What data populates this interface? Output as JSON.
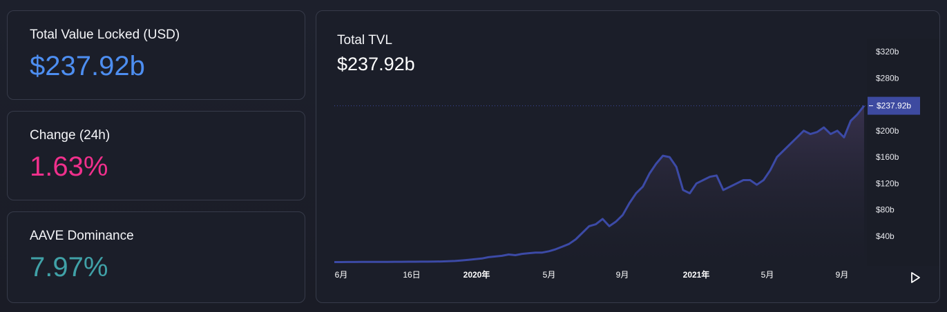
{
  "stats": [
    {
      "label": "Total Value Locked (USD)",
      "value": "$237.92b",
      "color": "#4d8ef1"
    },
    {
      "label": "Change (24h)",
      "value": "1.63%",
      "color": "#f0308c"
    },
    {
      "label": "AAVE Dominance",
      "value": "7.97%",
      "color": "#40a1a7"
    }
  ],
  "chart": {
    "title": "Total TVL",
    "value": "$237.92b",
    "current_label": "$237.92b",
    "line_color": "#3c4aa6",
    "label_bg": "#3d4aa0",
    "play_icon": "play-icon"
  },
  "chart_data": {
    "type": "area",
    "ylim": [
      0,
      340
    ],
    "y_ticks": [
      {
        "value": 40,
        "label": "$40b"
      },
      {
        "value": 80,
        "label": "$80b"
      },
      {
        "value": 120,
        "label": "$120b"
      },
      {
        "value": 160,
        "label": "$160b"
      },
      {
        "value": 200,
        "label": "$200b"
      },
      {
        "value": 280,
        "label": "$280b"
      },
      {
        "value": 320,
        "label": "$320b"
      }
    ],
    "x_ticks": [
      {
        "label": "6月",
        "bold": false
      },
      {
        "label": "16日",
        "bold": false
      },
      {
        "label": "2020年",
        "bold": true
      },
      {
        "label": "5月",
        "bold": false
      },
      {
        "label": "9月",
        "bold": false
      },
      {
        "label": "2021年",
        "bold": true
      },
      {
        "label": "5月",
        "bold": false
      },
      {
        "label": "9月",
        "bold": false
      }
    ],
    "series": [
      {
        "values": [
          0.5,
          0.5,
          0.6,
          0.6,
          0.7,
          0.7,
          0.7,
          0.8,
          0.8,
          0.9,
          0.9,
          1.0,
          1.0,
          1.1,
          1.2,
          1.3,
          1.5,
          1.8,
          2.2,
          3,
          4,
          5,
          6,
          8,
          9,
          10,
          12,
          11,
          13,
          14,
          15,
          15,
          17,
          20,
          24,
          28,
          35,
          45,
          55,
          58,
          66,
          55,
          62,
          72,
          90,
          105,
          115,
          135,
          150,
          162,
          160,
          145,
          110,
          105,
          120,
          125,
          130,
          132,
          110,
          115,
          120,
          125,
          125,
          118,
          125,
          140,
          160,
          170,
          180,
          190,
          200,
          195,
          198,
          205,
          195,
          200,
          190,
          215,
          225,
          237.92
        ]
      }
    ]
  }
}
